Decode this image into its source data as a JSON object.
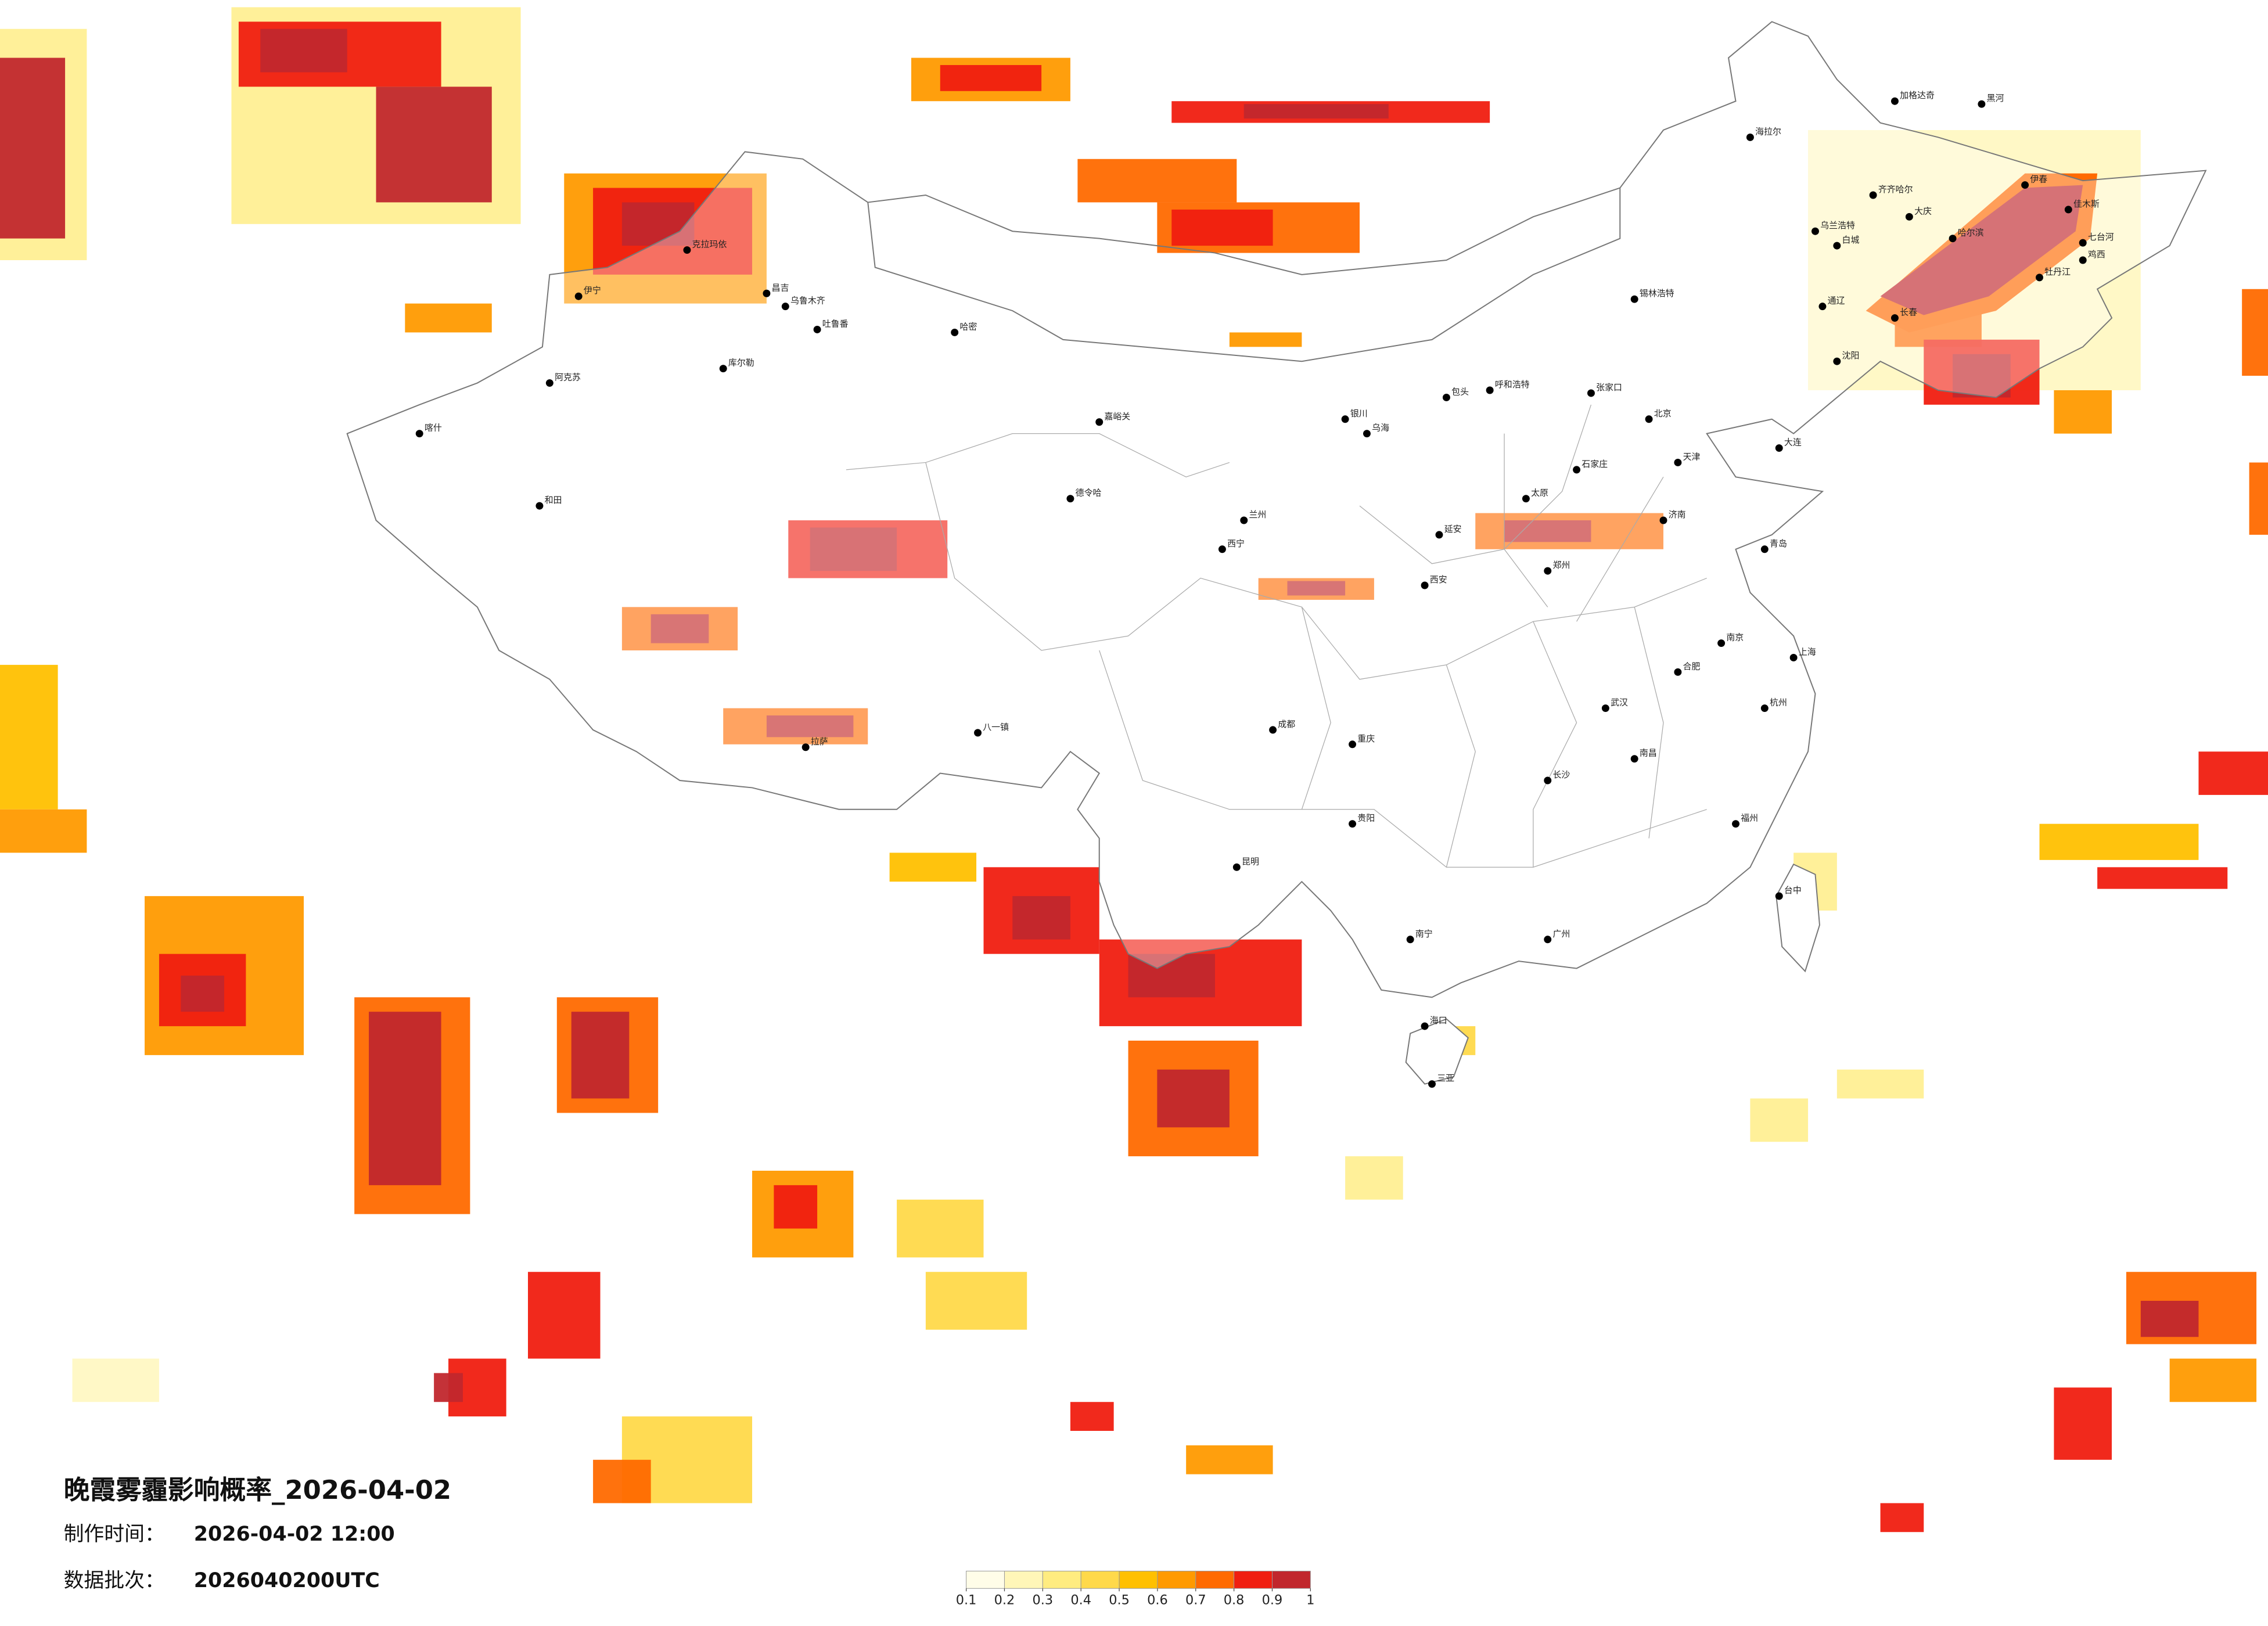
{
  "title": "晚霞雾霾影响概率_2026-04-02",
  "made_time": {
    "label": "制作时间：",
    "value": "2026-04-02 12:00"
  },
  "batch": {
    "label": "数据批次：",
    "value": "2026040200UTC"
  },
  "colorbar": {
    "colors": [
      "#fffde8",
      "#fff6b8",
      "#ffec80",
      "#ffd94a",
      "#ffc000",
      "#ff9a00",
      "#ff6a00",
      "#f01e10",
      "#c1272d"
    ],
    "ticks": [
      0.1,
      0.2,
      0.3,
      0.4,
      0.5,
      0.6,
      0.7,
      0.8,
      0.9,
      1
    ]
  },
  "cities": [
    "克拉玛依",
    "伊宁",
    "昌吉",
    "乌鲁木齐",
    "吐鲁番",
    "哈密",
    "阿克苏",
    "库尔勒",
    "喀什",
    "和田",
    "拉萨",
    "八一镇",
    "海拉尔",
    "加格达奇",
    "黑河",
    "齐齐哈尔",
    "大庆",
    "哈尔滨",
    "伊春",
    "佳木斯",
    "七台河",
    "鸡西",
    "牡丹江",
    "乌兰浩特",
    "白城",
    "通辽",
    "锡林浩特",
    "呼和浩特",
    "包头",
    "张家口",
    "北京",
    "天津",
    "石家庄",
    "太原",
    "济南",
    "青岛",
    "郑州",
    "西安",
    "银川",
    "兰州",
    "西宁",
    "成都",
    "重庆",
    "武汉",
    "长沙",
    "南昌",
    "合肥",
    "南京",
    "上海",
    "杭州",
    "福州",
    "广州",
    "南宁",
    "海口",
    "三亚",
    "昆明",
    "贵阳",
    "台中",
    "大连",
    "沈阳",
    "长春",
    "嘉峪关",
    "德令哈",
    "乌海",
    "延安"
  ]
}
